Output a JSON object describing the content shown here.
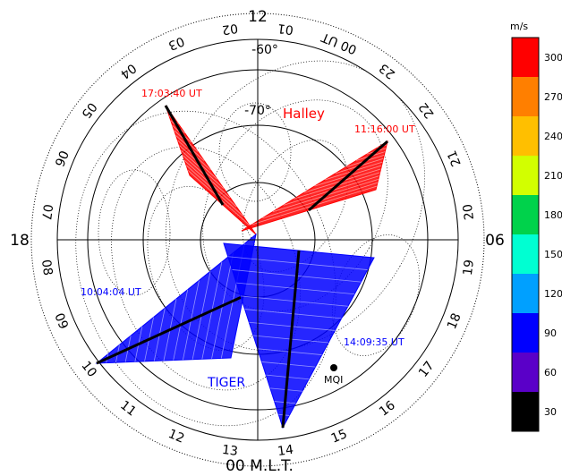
{
  "mlt_labels": {
    "top": "12",
    "left": "18",
    "right": "06",
    "bottom": "00 M.L.T."
  },
  "latitude_labels": [
    "-60°",
    "-70°"
  ],
  "ut_ring_labels": [
    "02",
    "01",
    "00 UT",
    "23",
    "22",
    "21",
    "20",
    "19",
    "18",
    "17",
    "16",
    "15",
    "14",
    "13",
    "12",
    "11",
    "10",
    "09",
    "08",
    "07",
    "06",
    "05",
    "04",
    "03"
  ],
  "radars": {
    "halley": {
      "name": "Halley",
      "color": "#ff0000"
    },
    "tiger": {
      "name": "TIGER",
      "color": "#0000ff"
    }
  },
  "scan_times": [
    {
      "text": "17:03:40 UT",
      "color": "#ff0000"
    },
    {
      "text": "11:16:00 UT",
      "color": "#ff0000"
    },
    {
      "text": "10:04:04 UT",
      "color": "#0000ff"
    },
    {
      "text": "14:09:35 UT",
      "color": "#0000ff"
    }
  ],
  "station": {
    "name": "MQI"
  },
  "colorbar": {
    "unit": "m/s",
    "levels": [
      {
        "value": "300",
        "color": "#ff0000"
      },
      {
        "value": "270",
        "color": "#ff7f00"
      },
      {
        "value": "240",
        "color": "#ffbf00"
      },
      {
        "value": "210",
        "color": "#d2ff00"
      },
      {
        "value": "180",
        "color": "#00d24b"
      },
      {
        "value": "150",
        "color": "#00ffd2"
      },
      {
        "value": "120",
        "color": "#00a0ff"
      },
      {
        "value": "90",
        "color": "#0000ff"
      },
      {
        "value": "60",
        "color": "#5a00c8"
      },
      {
        "value": "30",
        "color": "#000000"
      }
    ]
  }
}
